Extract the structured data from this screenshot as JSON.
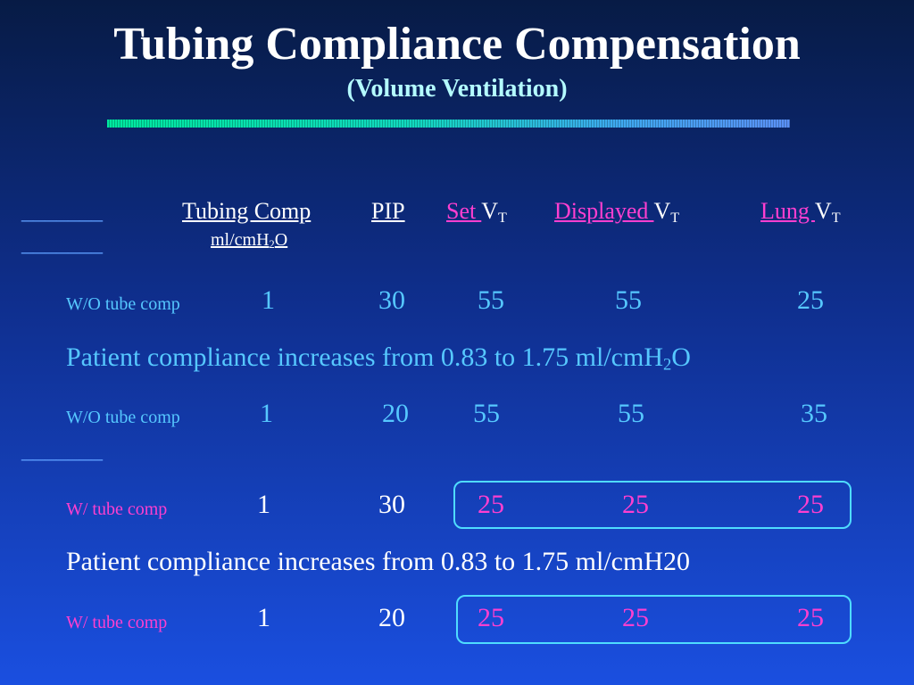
{
  "title": "Tubing Compliance Compensation",
  "subtitle": "(Volume Ventilation)",
  "header": {
    "blank_line": "_______",
    "tubing_comp": "Tubing Comp",
    "tubing_comp_units": "ml/cmH",
    "tubing_comp_units_sub": "2",
    "tubing_comp_units_end": "O",
    "pip": "PIP",
    "set_vt": "Set ",
    "displayed_vt": "Displayed ",
    "lung_vt": "Lung ",
    "v_symbol": "V",
    "t_sub": "T"
  },
  "rows": [
    {
      "label": "W/O tube comp",
      "tubing_comp": "1",
      "pip": "30",
      "set_vt": "55",
      "displayed_vt": "55",
      "lung_vt": "25"
    },
    {
      "label": "W/O tube comp",
      "tubing_comp": "1",
      "pip": "20",
      "set_vt": "55",
      "displayed_vt": "55",
      "lung_vt": "35"
    },
    {
      "label": "W/ tube comp",
      "tubing_comp": "1",
      "pip": "30",
      "set_vt": "25",
      "displayed_vt": "25",
      "lung_vt": "25"
    },
    {
      "label": "W/ tube comp",
      "tubing_comp": "1",
      "pip": "20",
      "set_vt": "25",
      "displayed_vt": "25",
      "lung_vt": "25"
    }
  ],
  "notes": {
    "note1_main": "Patient compliance increases from 0.83 to 1.75 ml/cmH",
    "note1_sub": "2",
    "note1_end": "O",
    "note2": "Patient compliance increases from 0.83 to 1.75 ml/cmH20"
  },
  "colors": {
    "background_top": "#071b45",
    "background_bottom": "#1a4fe0",
    "title": "#ffffff",
    "subtitle": "#b4fbff",
    "pink": "#ff3fd0",
    "cyan": "#56c8ff",
    "box_border": "#4fdcff"
  }
}
